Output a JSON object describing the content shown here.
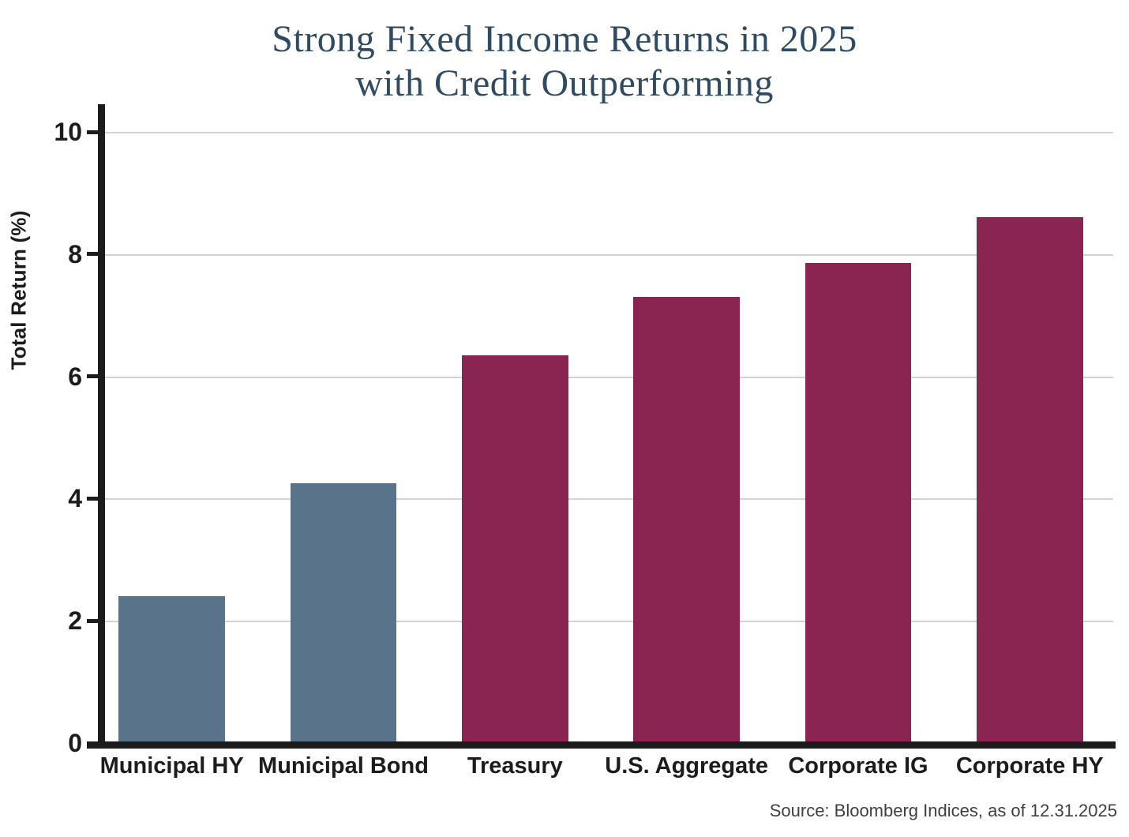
{
  "chart_data": {
    "type": "bar",
    "title_line1": "Strong Fixed Income Returns in 2025",
    "title_line2": "with Credit Outperforming",
    "ylabel": "Total Return (%)",
    "ylim": [
      0,
      10
    ],
    "yticks": [
      0,
      2,
      4,
      6,
      8,
      10
    ],
    "categories": [
      "Municipal HY",
      "Municipal Bond",
      "Treasury",
      "U.S. Aggregate",
      "Corporate IG",
      "Corporate HY"
    ],
    "values": [
      2.4,
      4.25,
      6.35,
      7.3,
      7.85,
      8.6
    ],
    "bar_colors": [
      "#59748a",
      "#59748a",
      "#8a2552",
      "#8a2552",
      "#8a2552",
      "#8a2552"
    ],
    "colors": {
      "municipal_blue": "#59748a",
      "credit_maroon": "#8a2552",
      "title": "#2e4b63",
      "axis": "#1d1b1c",
      "gridline": "#d2d2d2"
    },
    "grid": "horizontal",
    "legend": "none",
    "source": "Source: Bloomberg Indices, as of 12.31.2025"
  }
}
